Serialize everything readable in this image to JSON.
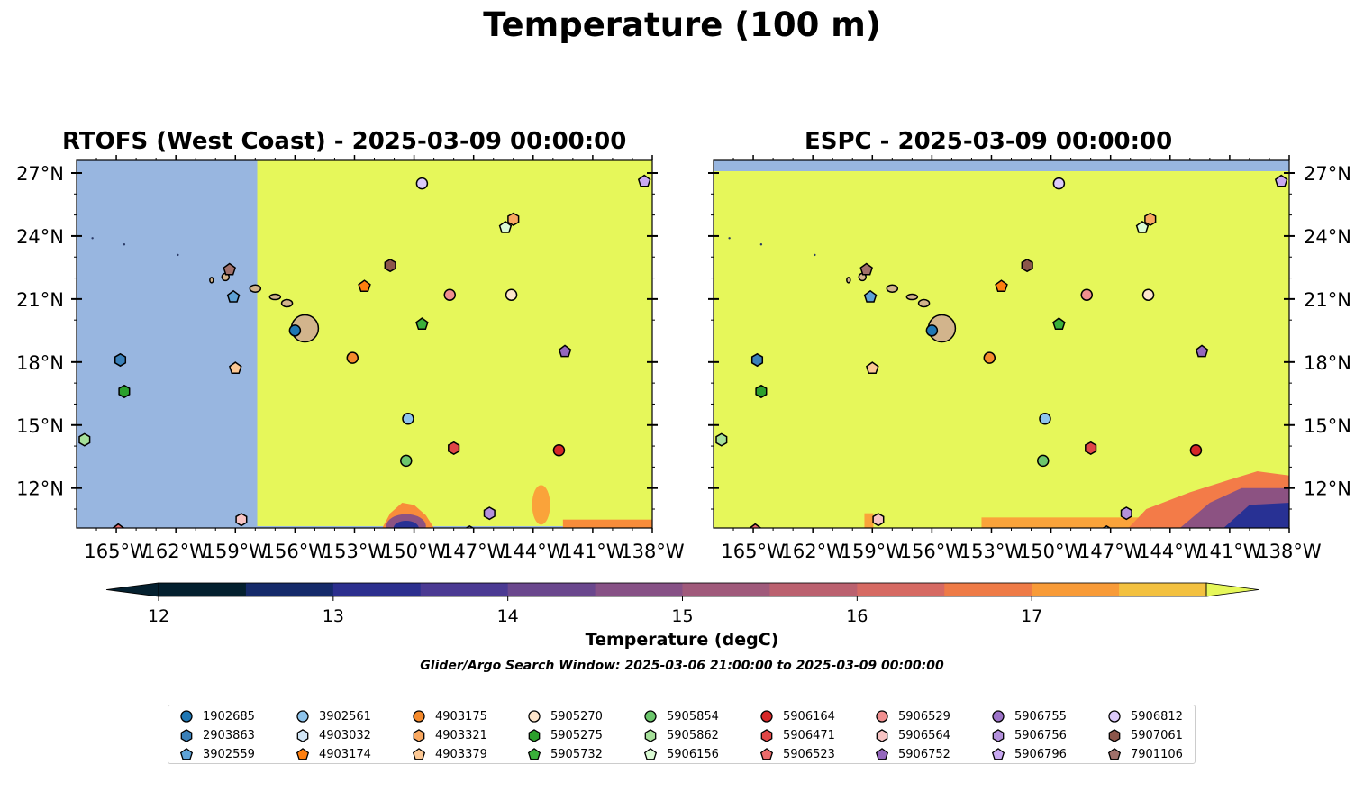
{
  "title": "Temperature (100 m)",
  "panels": [
    {
      "title": "RTOFS (West Coast) - 2025-03-09 00:00:00"
    },
    {
      "title": "ESPC - 2025-03-09 00:00:00"
    }
  ],
  "axes": {
    "lon_ticks": [
      "165°W",
      "162°W",
      "159°W",
      "156°W",
      "153°W",
      "150°W",
      "147°W",
      "144°W",
      "141°W",
      "138°W"
    ],
    "lat_ticks": [
      "27°N",
      "24°N",
      "21°N",
      "18°N",
      "15°N",
      "12°N"
    ],
    "extent": {
      "lon": [
        -167,
        -138
      ],
      "lat": [
        10.1,
        27.6
      ]
    }
  },
  "colorbar": {
    "label": "Temperature (degC)",
    "ticks": [
      "12",
      "13",
      "14",
      "15",
      "16",
      "17"
    ],
    "range": [
      11.5,
      17.5
    ],
    "colors": [
      "#04202f",
      "#0e2840",
      "#1c2f6e",
      "#283194",
      "#3d2fa0",
      "#593c99",
      "#74498e",
      "#8c5282",
      "#a35a78",
      "#bc616e",
      "#d26766",
      "#e66f58",
      "#f37b48",
      "#f88c3a",
      "#faa33a",
      "#f6bc3f",
      "#eed547",
      "#e6f75a"
    ],
    "colors_note": "",
    "extend_low": "#04202f",
    "extend_high": "#e6f75a"
  },
  "colors": {
    "land_mask": "#98b6e0",
    "warm_field": "#e6f75a",
    "island_fill": "#d2b48c"
  },
  "search_window": "Glider/Argo Search Window: 2025-03-06 21:00:00 to 2025-03-09 00:00:00",
  "floats": [
    {
      "id": "1902685",
      "marker": "circle",
      "color": "#1f77b4",
      "lon": -156.0,
      "lat": 19.5
    },
    {
      "id": "2903863",
      "marker": "hexagon",
      "color": "#3a80b9",
      "lon": -164.8,
      "lat": 18.1
    },
    {
      "id": "3902559",
      "marker": "pentagon",
      "color": "#5ea2d6",
      "lon": -159.1,
      "lat": 21.1
    },
    {
      "id": "3902561",
      "marker": "circle",
      "color": "#8ec4ec",
      "lon": -150.3,
      "lat": 15.3
    },
    {
      "id": "4903032",
      "marker": "hexagon",
      "color": "#d2e6f6",
      "lon": -147.2,
      "lat": 9.9
    },
    {
      "id": "4903174",
      "marker": "pentagon",
      "color": "#ff7f0e",
      "lon": -152.5,
      "lat": 21.6
    },
    {
      "id": "4903175",
      "marker": "circle",
      "color": "#f58a2c",
      "lon": -153.1,
      "lat": 18.2
    },
    {
      "id": "4903321",
      "marker": "hexagon",
      "color": "#f9a860",
      "lon": -145.0,
      "lat": 24.8
    },
    {
      "id": "4903379",
      "marker": "pentagon",
      "color": "#fcc894",
      "lon": -159.0,
      "lat": 17.7
    },
    {
      "id": "5905270",
      "marker": "circle",
      "color": "#fde5cb",
      "lon": -145.1,
      "lat": 21.2
    },
    {
      "id": "5905275",
      "marker": "hexagon",
      "color": "#2ca02c",
      "lon": -164.6,
      "lat": 16.6
    },
    {
      "id": "5905732",
      "marker": "pentagon",
      "color": "#3ab03a",
      "lon": -149.6,
      "lat": 19.8
    },
    {
      "id": "5905854",
      "marker": "circle",
      "color": "#6cc66c",
      "lon": -150.4,
      "lat": 13.3
    },
    {
      "id": "5905862",
      "marker": "hexagon",
      "color": "#a6e09a",
      "lon": -166.6,
      "lat": 14.3
    },
    {
      "id": "5906156",
      "marker": "pentagon",
      "color": "#dbfbd4",
      "lon": -145.4,
      "lat": 24.4
    },
    {
      "id": "5906164",
      "marker": "circle",
      "color": "#d62728",
      "lon": -142.7,
      "lat": 13.8
    },
    {
      "id": "5906471",
      "marker": "hexagon",
      "color": "#e04646",
      "lon": -148.0,
      "lat": 13.9
    },
    {
      "id": "5906523",
      "marker": "pentagon",
      "color": "#ea6b6b",
      "lon": -164.9,
      "lat": 10.0
    },
    {
      "id": "5906529",
      "marker": "circle",
      "color": "#f08f8f",
      "lon": -148.2,
      "lat": 21.2
    },
    {
      "id": "5906564",
      "marker": "hexagon",
      "color": "#f8c4c4",
      "lon": -158.7,
      "lat": 10.5
    },
    {
      "id": "5906752",
      "marker": "pentagon",
      "color": "#9467bd",
      "lon": -142.4,
      "lat": 18.5
    },
    {
      "id": "5906755",
      "marker": "circle",
      "color": "#9d73c8",
      "lon": -150.3,
      "lat": 9.8
    },
    {
      "id": "5906756",
      "marker": "hexagon",
      "color": "#b491dc",
      "lon": -146.2,
      "lat": 10.8
    },
    {
      "id": "5906796",
      "marker": "pentagon",
      "color": "#c9a9f2",
      "lon": -138.4,
      "lat": 26.6
    },
    {
      "id": "5906812",
      "marker": "circle",
      "color": "#dccafb",
      "lon": -149.6,
      "lat": 26.5
    },
    {
      "id": "5907061",
      "marker": "hexagon",
      "color": "#8c564b",
      "lon": -151.2,
      "lat": 22.6
    },
    {
      "id": "7901106",
      "marker": "pentagon",
      "color": "#a1706a",
      "lon": -159.3,
      "lat": 22.4
    }
  ]
}
